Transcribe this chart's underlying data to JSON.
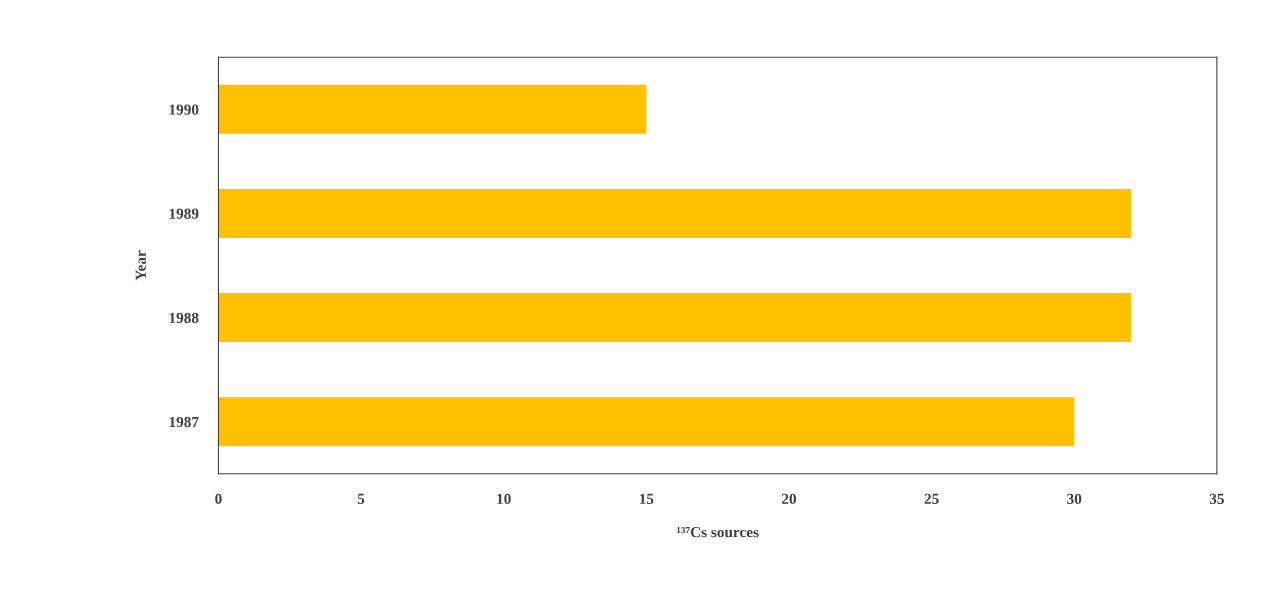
{
  "chart_data": {
    "type": "bar",
    "orientation": "horizontal",
    "xlabel": "¹³⁷Cs sources",
    "ylabel": "Year",
    "categories": [
      "1990",
      "1989",
      "1988",
      "1987"
    ],
    "values": [
      15,
      32,
      32,
      30
    ],
    "color": "#ffc000",
    "xlim": [
      0,
      35
    ],
    "xticks": [
      0,
      5,
      10,
      15,
      20,
      25,
      30,
      35
    ],
    "grid": false,
    "legend": false
  }
}
